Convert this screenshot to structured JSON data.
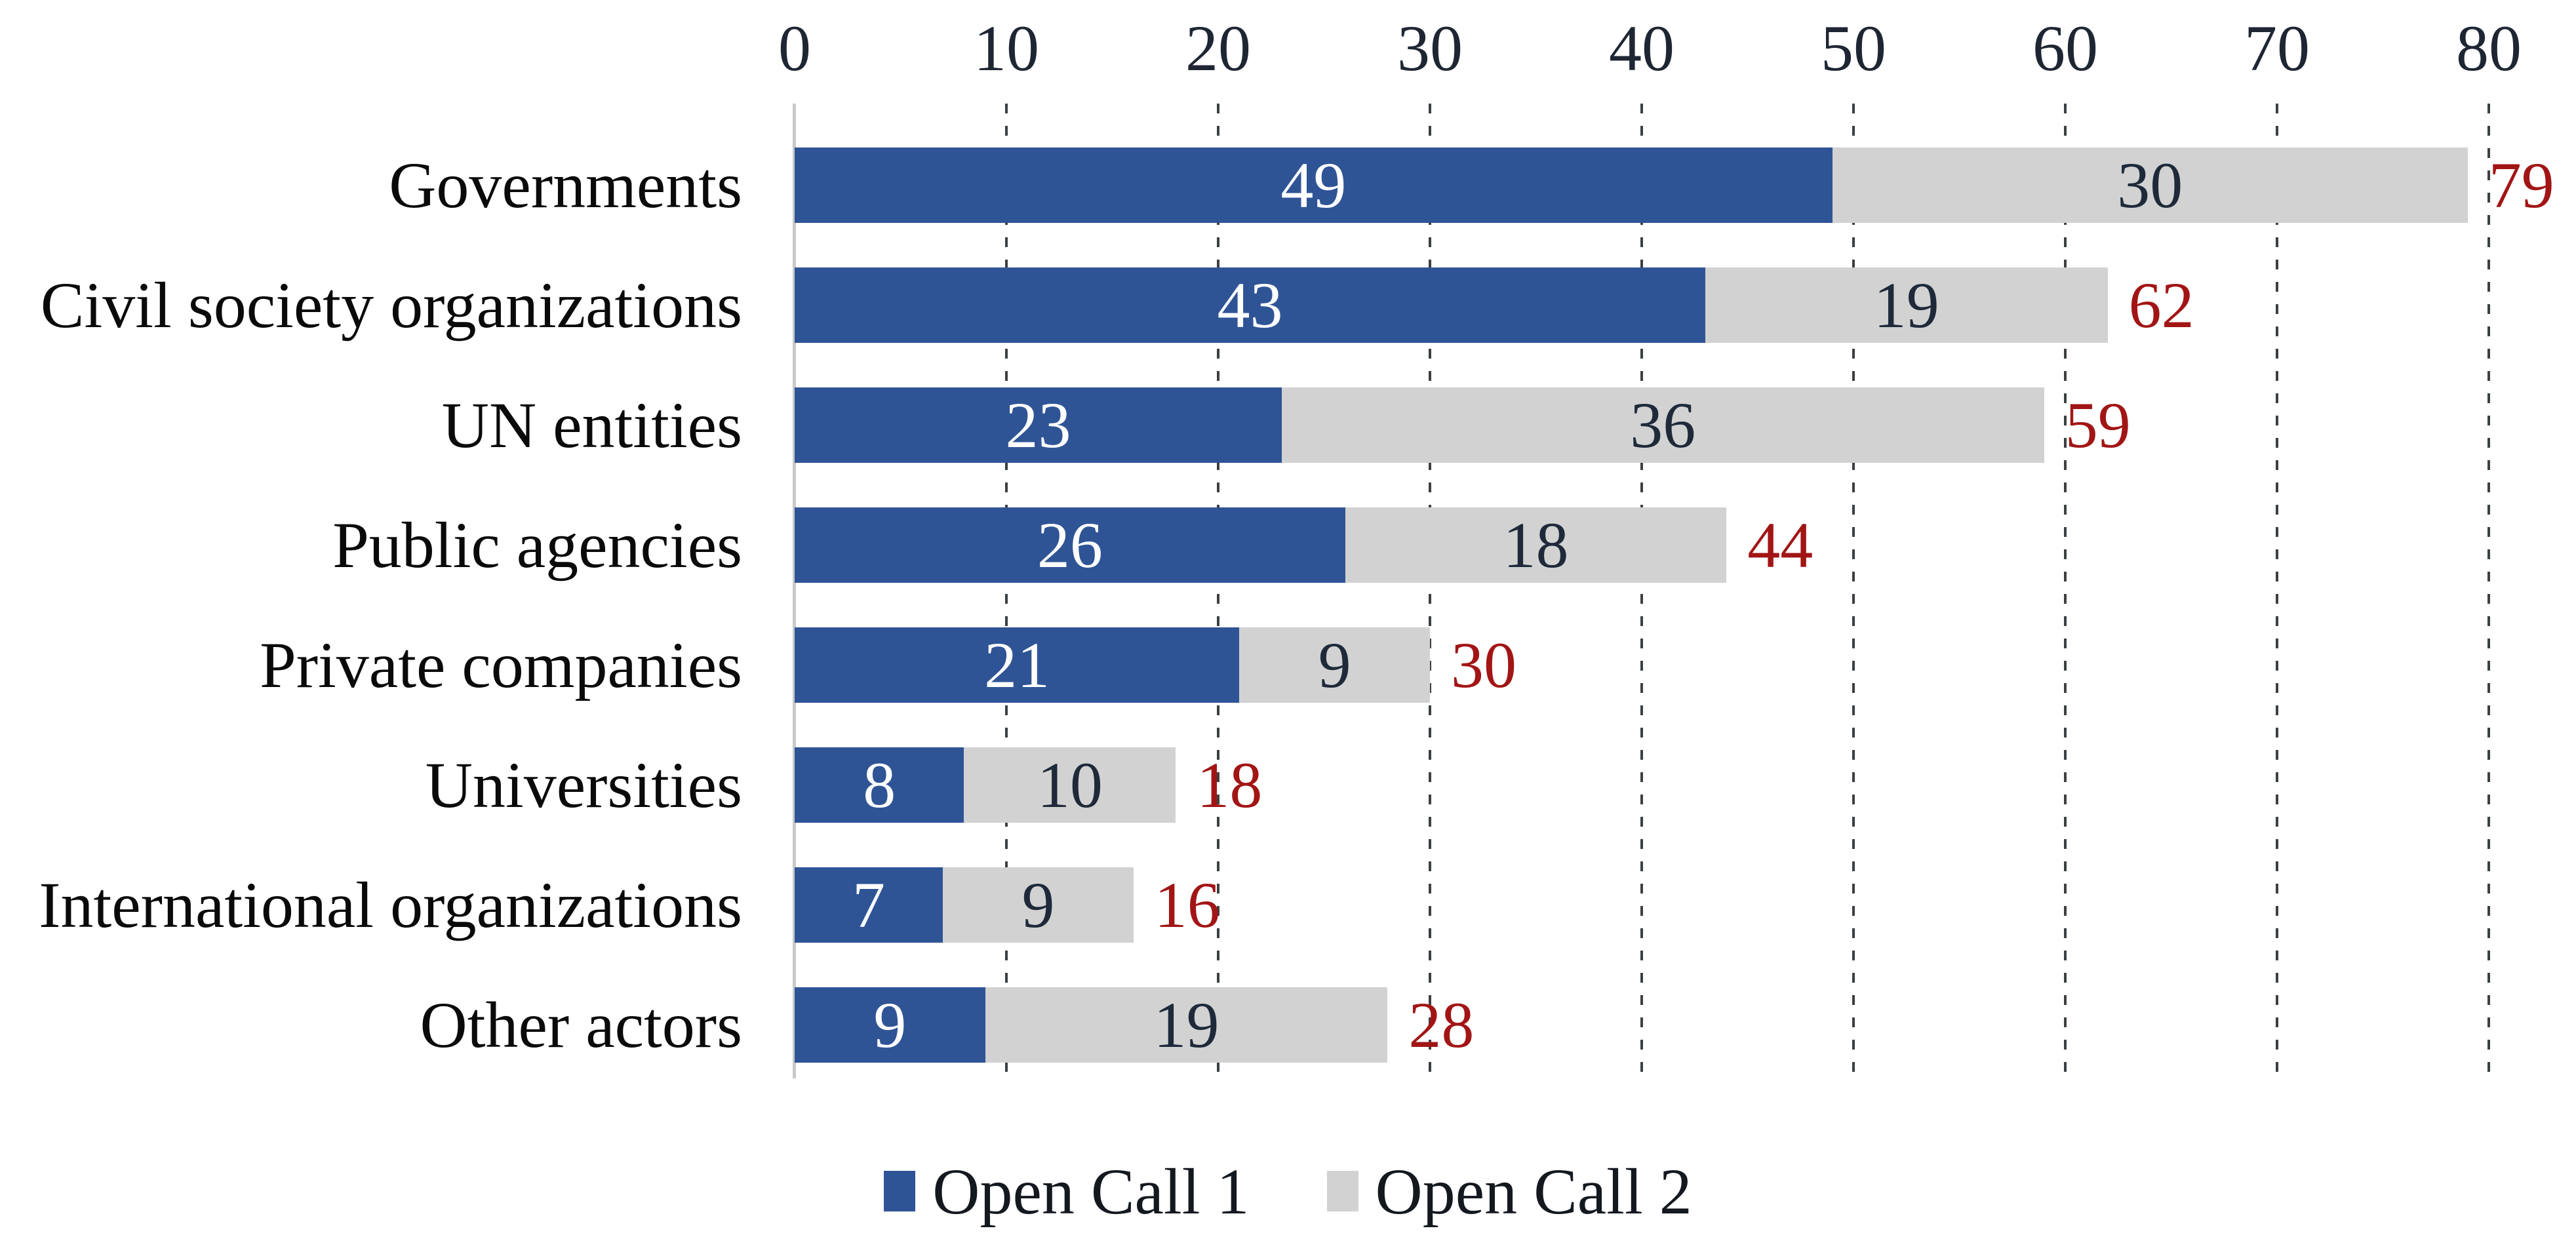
{
  "chart_data": {
    "type": "bar",
    "orientation": "horizontal",
    "stacked": true,
    "title": "",
    "xlabel": "",
    "ylabel": "",
    "xlim": [
      0,
      80
    ],
    "x_ticks": [
      "0",
      "10",
      "20",
      "30",
      "40",
      "50",
      "60",
      "70",
      "80"
    ],
    "grid": "dashed-vertical-gridlines",
    "legend_position": "bottom",
    "categories": [
      "Governments",
      "Civil society organizations",
      "UN entities",
      "Public agencies",
      "Private companies",
      "Universities",
      "International organizations",
      "Other actors"
    ],
    "series": [
      {
        "name": "Open Call 1",
        "color": "#2F5496",
        "label_color": "#FFFFFF",
        "values": [
          49,
          43,
          23,
          26,
          21,
          8,
          7,
          9
        ]
      },
      {
        "name": "Open Call 2",
        "color": "#D2D2D2",
        "label_color": "#1e2a3a",
        "values": [
          30,
          19,
          36,
          18,
          9,
          10,
          9,
          19
        ]
      }
    ],
    "totals": {
      "values": [
        79,
        62,
        59,
        44,
        30,
        18,
        16,
        28
      ],
      "color": "#A21515"
    }
  },
  "legend": {
    "items": [
      {
        "label": "Open Call 1",
        "color": "#2F5496"
      },
      {
        "label": "Open Call 2",
        "color": "#D2D2D2"
      }
    ]
  }
}
